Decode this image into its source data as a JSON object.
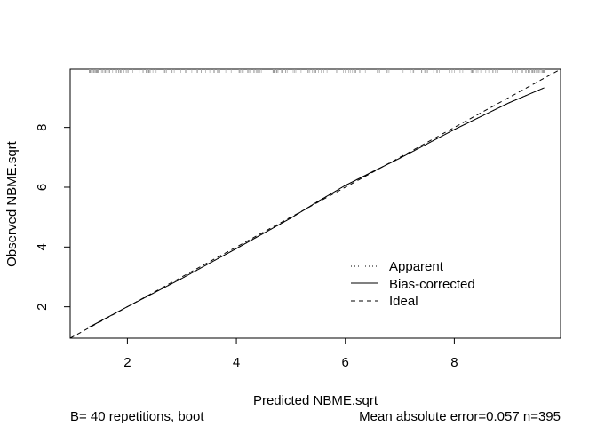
{
  "chart_data": {
    "type": "line",
    "xlabel": "Predicted NBME.sqrt",
    "ylabel": "Observed NBME.sqrt",
    "xlim": [
      0.95,
      9.95
    ],
    "ylim": [
      0.95,
      9.95
    ],
    "x_ticks": [
      2,
      4,
      6,
      8
    ],
    "y_ticks": [
      2,
      4,
      6,
      8
    ],
    "grid": false,
    "legend_position": "bottom-right",
    "legend": [
      "Apparent",
      "Bias-corrected",
      "Ideal"
    ],
    "series": [
      {
        "name": "Apparent",
        "style": "dotted",
        "color": "#000000",
        "x": [
          1.3,
          2.0,
          3.0,
          4.0,
          5.0,
          5.5,
          6.0,
          6.5,
          7.0,
          8.0,
          9.0,
          9.65
        ],
        "y": [
          1.32,
          2.0,
          2.95,
          3.95,
          4.97,
          5.53,
          6.06,
          6.52,
          6.97,
          7.93,
          8.82,
          9.33
        ]
      },
      {
        "name": "Bias-corrected",
        "style": "solid",
        "color": "#000000",
        "x": [
          1.3,
          2.0,
          3.0,
          4.0,
          5.0,
          5.5,
          6.0,
          6.5,
          7.0,
          8.0,
          9.0,
          9.65
        ],
        "y": [
          1.32,
          2.0,
          2.95,
          3.95,
          4.97,
          5.53,
          6.06,
          6.52,
          6.97,
          7.93,
          8.82,
          9.33
        ]
      },
      {
        "name": "Ideal",
        "style": "dashed",
        "color": "#000000",
        "x": [
          0.95,
          9.95
        ],
        "y": [
          0.95,
          9.95
        ]
      }
    ],
    "rug_range": [
      1.3,
      9.65
    ],
    "footer_left": "B= 40 repetitions, boot",
    "footer_right": "Mean absolute error=0.057 n=395"
  }
}
